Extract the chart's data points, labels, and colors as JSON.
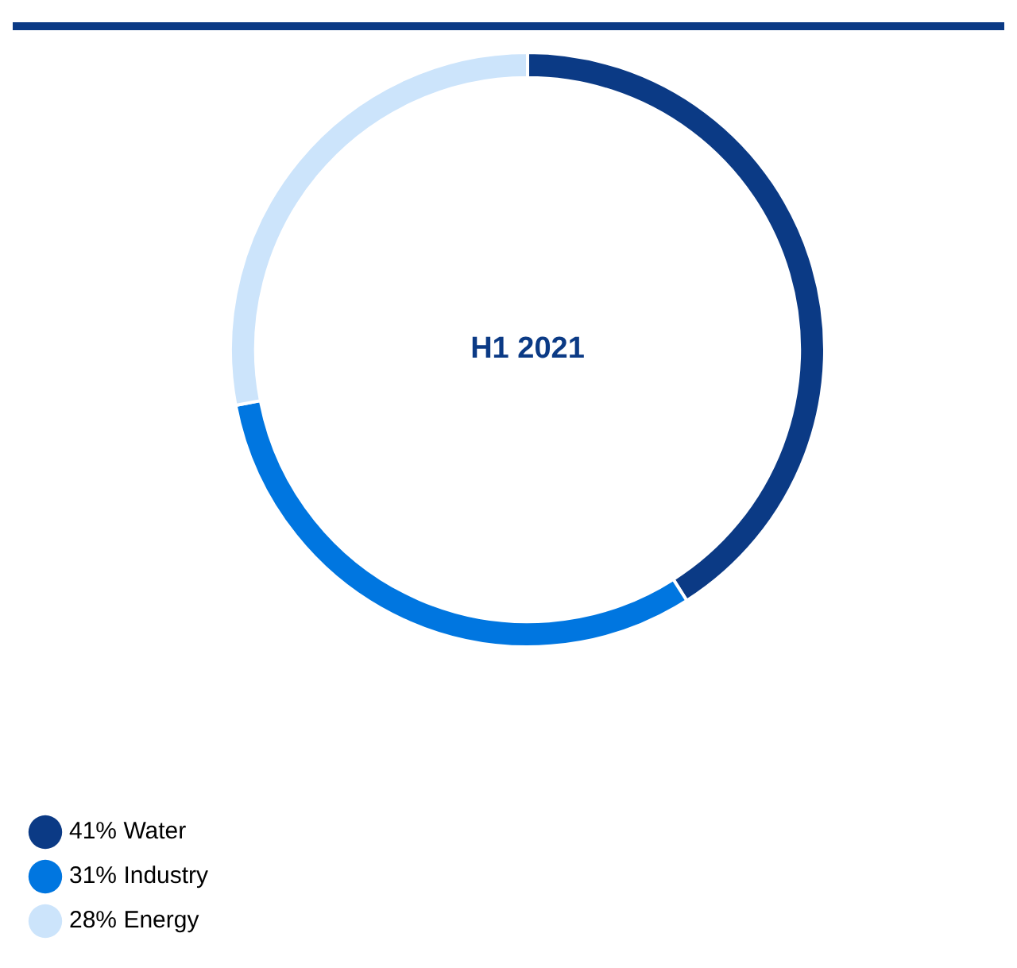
{
  "chart_data": {
    "type": "donut",
    "title": "H1 2021",
    "categories": [
      "Water",
      "Industry",
      "Energy"
    ],
    "values": [
      41,
      31,
      28
    ],
    "value_labels": [
      "41%",
      "31%",
      "28%"
    ],
    "colors": [
      "#0b3a85",
      "#0076e0",
      "#cce4fb"
    ],
    "legend": "bottom left"
  }
}
